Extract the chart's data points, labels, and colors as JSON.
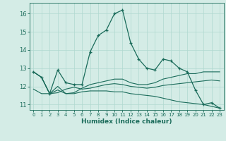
{
  "xlabel": "Humidex (Indice chaleur)",
  "background_color": "#d4ece6",
  "grid_color": "#b0d8d0",
  "line_color": "#1a6b5a",
  "xlim": [
    -0.5,
    23.5
  ],
  "ylim": [
    10.7,
    16.6
  ],
  "yticks": [
    11,
    12,
    13,
    14,
    15,
    16
  ],
  "xticks": [
    0,
    1,
    2,
    3,
    4,
    5,
    6,
    7,
    8,
    9,
    10,
    11,
    12,
    13,
    14,
    15,
    16,
    17,
    18,
    19,
    20,
    21,
    22,
    23
  ],
  "series1_x": [
    0,
    1,
    2,
    3,
    4,
    5,
    6,
    7,
    8,
    9,
    10,
    11,
    12,
    13,
    14,
    15,
    16,
    17,
    18,
    19,
    20,
    21,
    22,
    23
  ],
  "series1_y": [
    12.8,
    12.5,
    11.6,
    12.9,
    12.2,
    12.1,
    12.1,
    13.9,
    14.8,
    15.1,
    16.0,
    16.2,
    14.4,
    13.5,
    13.0,
    12.9,
    13.5,
    13.4,
    13.0,
    12.8,
    11.8,
    11.0,
    11.1,
    10.8
  ],
  "series2_x": [
    0,
    1,
    2,
    3,
    4,
    5,
    6,
    7,
    8,
    9,
    10,
    11,
    12,
    13,
    14,
    15,
    16,
    17,
    18,
    19,
    20,
    21,
    22,
    23
  ],
  "series2_y": [
    11.85,
    11.6,
    11.6,
    11.65,
    11.85,
    11.95,
    11.85,
    11.9,
    12.0,
    12.1,
    12.15,
    12.1,
    12.0,
    11.95,
    11.9,
    11.95,
    12.05,
    12.1,
    12.15,
    12.2,
    12.25,
    12.3,
    12.35,
    12.3
  ],
  "series3_x": [
    0,
    1,
    2,
    3,
    4,
    5,
    6,
    7,
    8,
    9,
    10,
    11,
    12,
    13,
    14,
    15,
    16,
    17,
    18,
    19,
    20,
    21,
    22,
    23
  ],
  "series3_y": [
    12.8,
    12.5,
    11.6,
    12.0,
    11.6,
    11.65,
    11.9,
    12.1,
    12.2,
    12.3,
    12.4,
    12.4,
    12.2,
    12.1,
    12.1,
    12.2,
    12.4,
    12.5,
    12.6,
    12.7,
    12.7,
    12.8,
    12.8,
    12.8
  ],
  "series4_x": [
    0,
    1,
    2,
    3,
    4,
    5,
    6,
    7,
    8,
    9,
    10,
    11,
    12,
    13,
    14,
    15,
    16,
    17,
    18,
    19,
    20,
    21,
    22,
    23
  ],
  "series4_y": [
    12.8,
    12.5,
    11.6,
    11.8,
    11.6,
    11.6,
    11.7,
    11.75,
    11.75,
    11.75,
    11.7,
    11.7,
    11.6,
    11.55,
    11.5,
    11.45,
    11.35,
    11.25,
    11.15,
    11.1,
    11.05,
    11.0,
    10.9,
    10.8
  ]
}
